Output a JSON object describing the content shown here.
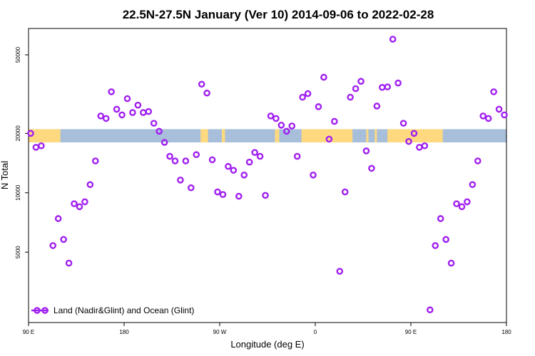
{
  "chart_data": {
    "type": "scatter",
    "title": "22.5N-27.5N January (Ver 10)   2014-09-06 to 2022-02-28",
    "xlabel": "Longitude (deg E)",
    "ylabel": "N Total",
    "x_ticks": [
      {
        "value": 90,
        "label": "90 E"
      },
      {
        "value": 180,
        "label": "180"
      },
      {
        "value": 270,
        "label": "90 W"
      },
      {
        "value": 360,
        "label": "0"
      },
      {
        "value": 450,
        "label": "90 E"
      },
      {
        "value": 540,
        "label": "180"
      }
    ],
    "y_ticks": [
      {
        "value": 5000,
        "label": "5000"
      },
      {
        "value": 10000,
        "label": "10000"
      },
      {
        "value": 20000,
        "label": "20000"
      },
      {
        "value": 50000,
        "label": "50000"
      }
    ],
    "xlim": [
      90,
      540
    ],
    "ylim": [
      2200,
      68000
    ],
    "y_scale": "log",
    "grid": false,
    "legend_position": "bottom-left",
    "colors": {
      "points": "#A020F0",
      "land": "#FFD980",
      "ocean": "#A8BFDB"
    },
    "surface_band": {
      "y_range": [
        18000,
        21000
      ],
      "land_segments": [
        [
          90,
          120
        ],
        [
          252,
          259
        ],
        [
          272,
          275
        ],
        [
          322,
          326
        ],
        [
          347,
          395
        ],
        [
          408,
          410
        ],
        [
          416,
          418
        ],
        [
          428,
          480
        ]
      ]
    },
    "series": [
      {
        "name": "Land (Nadir&Glint) and Ocean (Glint)",
        "points": [
          [
            92,
            20000
          ],
          [
            97,
            17000
          ],
          [
            102,
            17300
          ],
          [
            113,
            5400
          ],
          [
            118,
            7400
          ],
          [
            123,
            5800
          ],
          [
            128,
            4400
          ],
          [
            133,
            8800
          ],
          [
            138,
            8500
          ],
          [
            143,
            9000
          ],
          [
            148,
            11000
          ],
          [
            153,
            14500
          ],
          [
            158,
            24500
          ],
          [
            163,
            23800
          ],
          [
            168,
            32500
          ],
          [
            173,
            26500
          ],
          [
            178,
            24800
          ],
          [
            183,
            30000
          ],
          [
            188,
            25500
          ],
          [
            193,
            27800
          ],
          [
            198,
            25500
          ],
          [
            203,
            25800
          ],
          [
            208,
            22500
          ],
          [
            213,
            20500
          ],
          [
            218,
            18000
          ],
          [
            223,
            15300
          ],
          [
            228,
            14500
          ],
          [
            233,
            11600
          ],
          [
            238,
            14500
          ],
          [
            243,
            10600
          ],
          [
            248,
            15600
          ],
          [
            253,
            35500
          ],
          [
            258,
            32000
          ],
          [
            263,
            14700
          ],
          [
            268,
            10100
          ],
          [
            273,
            9800
          ],
          [
            278,
            13600
          ],
          [
            283,
            13000
          ],
          [
            288,
            9600
          ],
          [
            293,
            12300
          ],
          [
            298,
            14300
          ],
          [
            303,
            16000
          ],
          [
            308,
            15300
          ],
          [
            313,
            9700
          ],
          [
            318,
            24500
          ],
          [
            323,
            23800
          ],
          [
            328,
            22000
          ],
          [
            333,
            20500
          ],
          [
            338,
            21800
          ],
          [
            343,
            15300
          ],
          [
            348,
            30500
          ],
          [
            353,
            31800
          ],
          [
            358,
            12300
          ],
          [
            363,
            27300
          ],
          [
            368,
            38500
          ],
          [
            373,
            18700
          ],
          [
            378,
            23000
          ],
          [
            383,
            4000
          ],
          [
            388,
            10100
          ],
          [
            393,
            30500
          ],
          [
            398,
            33700
          ],
          [
            403,
            36700
          ],
          [
            408,
            16300
          ],
          [
            413,
            13300
          ],
          [
            418,
            27500
          ],
          [
            423,
            34200
          ],
          [
            428,
            34400
          ],
          [
            433,
            60000
          ],
          [
            438,
            36000
          ],
          [
            443,
            22500
          ],
          [
            448,
            18200
          ],
          [
            453,
            20000
          ],
          [
            458,
            17000
          ],
          [
            463,
            17300
          ],
          [
            468,
            2550
          ],
          [
            473,
            5400
          ],
          [
            478,
            7400
          ],
          [
            483,
            5800
          ],
          [
            488,
            4400
          ],
          [
            493,
            8800
          ],
          [
            498,
            8500
          ],
          [
            503,
            9000
          ],
          [
            508,
            11000
          ],
          [
            513,
            14500
          ],
          [
            518,
            24500
          ],
          [
            523,
            23800
          ],
          [
            528,
            32500
          ],
          [
            533,
            26500
          ],
          [
            538,
            24800
          ]
        ]
      }
    ]
  }
}
